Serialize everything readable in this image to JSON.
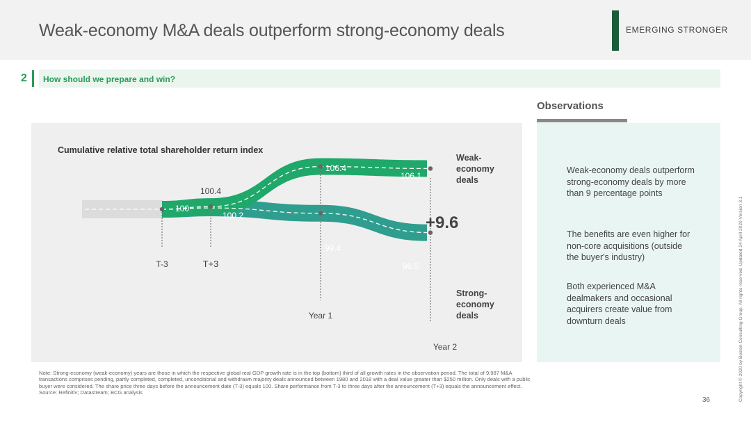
{
  "header": {
    "title": "Weak-economy M&A deals outperform strong-economy deals",
    "brand": "EMERGING STRONGER"
  },
  "section": {
    "number": "2",
    "text": "How should we prepare and win?"
  },
  "observations": {
    "title": "Observations",
    "items": [
      "Weak-economy deals outperform strong-economy deals by more than 9 percentage points",
      "The benefits are even higher for non-core acquisitions (outside the buyer's industry)",
      "Both experienced M&A dealmakers and occasional acquirers create value from downturn deals"
    ]
  },
  "note": "Note: Strong-economy (weak-economy) years are those in which the respective global real GDP growth rate is in the top (bottom) third of all growth rates in the observation period. The total of 9,987 M&A transactions comprises pending, partly completed, completed, unconditional and withdrawn majority deals announced between 1980 and 2018 with a deal value greater than $250 million. Only deals with a public buyer were considered. The share price three days before the announcement date (T-3) equals 100. Share performance from T-3 to three days after the announcement (T+3) equals the announcement effect.",
  "source": "Source: Refinitiv; Datastream; BCG analysis",
  "page_number": "36",
  "copyright": "Copyright © 2020 by Boston Consulting Group. All rights reserved.  Updated 24 April 2020 Version 3.1",
  "colors": {
    "weak": "#1fa86a",
    "strong": "#2f9e8f",
    "accent": "#2a9b5a"
  },
  "chart_data": {
    "type": "line",
    "title": "Cumulative relative total shareholder return index",
    "categories": [
      "T-3",
      "T+3",
      "Year 1",
      "Year 2"
    ],
    "series": [
      {
        "name": "Weak-economy deals",
        "values": [
          100,
          100.4,
          106.4,
          106.1
        ],
        "labels": [
          "100",
          "100.4",
          "106.4",
          "106.1"
        ]
      },
      {
        "name": "Strong-economy deals",
        "values": [
          100,
          100.2,
          99.4,
          96.5
        ],
        "labels": [
          "100",
          "100.2",
          "99.4",
          "96.5"
        ]
      }
    ],
    "series_labels": {
      "weak": [
        "Weak-",
        "economy",
        "deals"
      ],
      "strong": [
        "Strong-",
        "economy",
        "deals"
      ]
    },
    "difference": "+9.6"
  }
}
